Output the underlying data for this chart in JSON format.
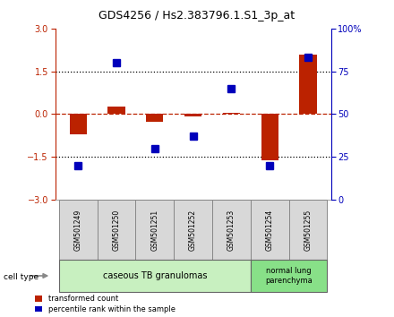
{
  "title": "GDS4256 / Hs2.383796.1.S1_3p_at",
  "samples": [
    "GSM501249",
    "GSM501250",
    "GSM501251",
    "GSM501252",
    "GSM501253",
    "GSM501254",
    "GSM501255"
  ],
  "transformed_count": [
    -0.72,
    0.28,
    -0.28,
    -0.07,
    0.04,
    -1.62,
    2.1
  ],
  "percentile_rank": [
    20,
    80,
    30,
    37,
    65,
    20,
    83
  ],
  "ylim_left": [
    -3,
    3
  ],
  "ylim_right": [
    0,
    100
  ],
  "yticks_left": [
    -3,
    -1.5,
    0,
    1.5,
    3
  ],
  "yticks_right": [
    0,
    25,
    50,
    75,
    100
  ],
  "ytick_labels_right": [
    "0",
    "25",
    "50",
    "75",
    "100%"
  ],
  "group1_label": "caseous TB granulomas",
  "group2_label": "normal lung\nparenchyma",
  "group1_color": "#c8f0c0",
  "group2_color": "#88e088",
  "sample_box_color": "#d8d8d8",
  "sample_box_edge": "#888888",
  "red_color": "#bb2200",
  "blue_color": "#0000bb",
  "bar_width": 0.45,
  "marker_size": 6,
  "dot_style": "s"
}
